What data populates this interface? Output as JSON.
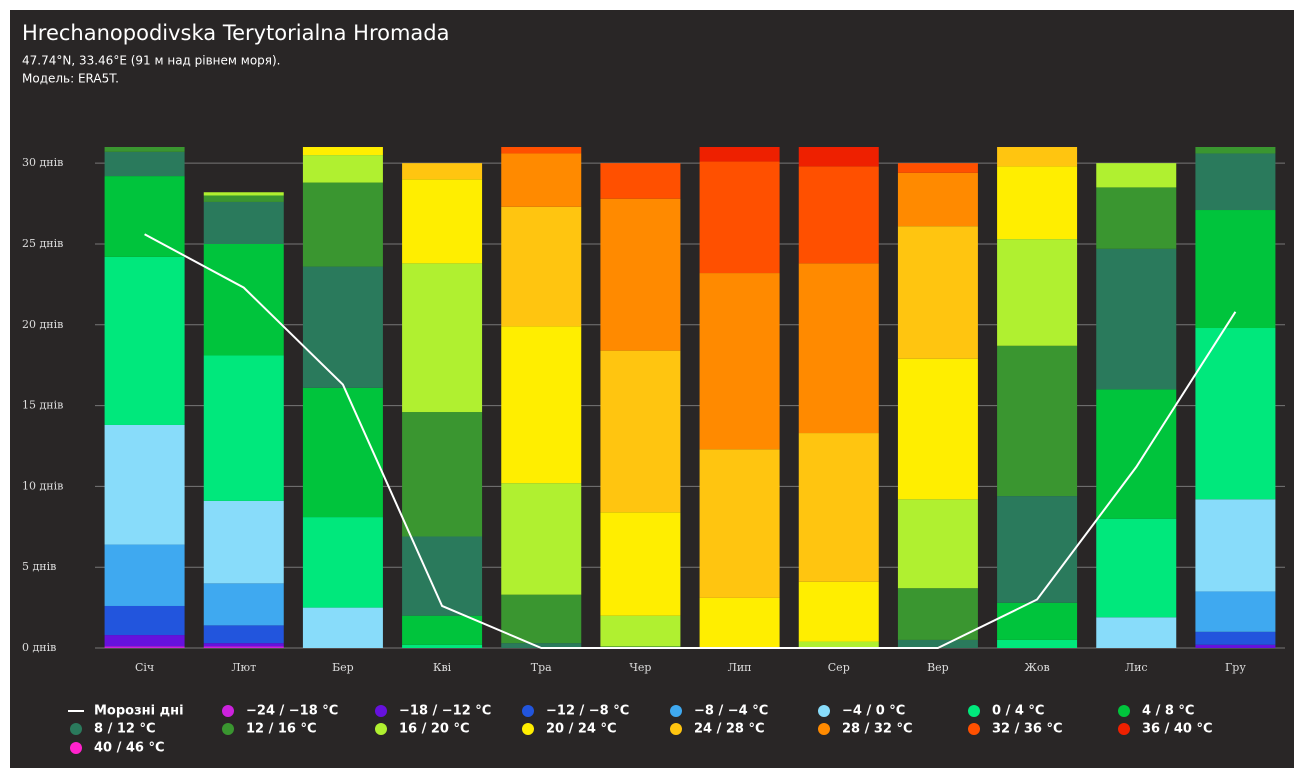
{
  "chart_data": {
    "type": "bar",
    "stacked": true,
    "title": "Hrechanopodivska Terytorialna Hromada",
    "subtitle": [
      "47.74°N, 33.46°E (91 м над рівнем моря).",
      "Модель: ERA5T."
    ],
    "categories": [
      "Січ",
      "Лют",
      "Бер",
      "Кві",
      "Тра",
      "Чер",
      "Лип",
      "Сер",
      "Вер",
      "Жов",
      "Лис",
      "Гру"
    ],
    "ylim": [
      0,
      31
    ],
    "yticks": [
      {
        "value": 0,
        "label": "0 днів"
      },
      {
        "value": 5,
        "label": "5 днів"
      },
      {
        "value": 10,
        "label": "10 днів"
      },
      {
        "value": 15,
        "label": "15 днів"
      },
      {
        "value": 20,
        "label": "20 днів"
      },
      {
        "value": 25,
        "label": "25 днів"
      },
      {
        "value": 30,
        "label": "30 днів"
      }
    ],
    "grid": true,
    "line": {
      "name": "Морозні дні",
      "color": "#ffffff",
      "values": [
        25.6,
        22.3,
        16.3,
        2.6,
        0,
        0,
        0,
        0,
        0,
        3.0,
        11.2,
        20.8
      ]
    },
    "series": [
      {
        "name": "−24 / −18 °C",
        "color": "#cc22dd",
        "values": [
          0.1,
          0.1,
          0,
          0,
          0,
          0,
          0,
          0,
          0,
          0,
          0,
          0
        ]
      },
      {
        "name": "−18 / −12 °C",
        "color": "#6611dd",
        "values": [
          0.7,
          0.2,
          0,
          0,
          0,
          0,
          0,
          0,
          0,
          0,
          0,
          0.2
        ]
      },
      {
        "name": "−12 / −8 °C",
        "color": "#2255dd",
        "values": [
          1.8,
          1.1,
          0,
          0,
          0,
          0,
          0,
          0,
          0,
          0,
          0,
          0.8
        ]
      },
      {
        "name": "−8 / −4 °C",
        "color": "#3fa9f0",
        "values": [
          3.8,
          2.6,
          0,
          0,
          0,
          0,
          0,
          0,
          0,
          0,
          0,
          2.5
        ]
      },
      {
        "name": "−4 / 0 °C",
        "color": "#88dcfa",
        "values": [
          7.4,
          5.1,
          2.5,
          0,
          0,
          0,
          0,
          0,
          0,
          0,
          1.9,
          5.7
        ]
      },
      {
        "name": "0 / 4 °C",
        "color": "#00e87c",
        "values": [
          10.4,
          9.0,
          5.6,
          0.2,
          0,
          0,
          0,
          0,
          0,
          0.5,
          6.1,
          10.6
        ]
      },
      {
        "name": "4 / 8 °C",
        "color": "#00c43c",
        "values": [
          5.0,
          6.9,
          8.0,
          1.8,
          0,
          0,
          0,
          0,
          0,
          2.3,
          8.0,
          7.3
        ]
      },
      {
        "name": "8 / 12 °C",
        "color": "#2a7a5c",
        "values": [
          1.5,
          2.6,
          7.5,
          4.9,
          0.3,
          0,
          0,
          0,
          0.5,
          6.6,
          8.7,
          3.5
        ]
      },
      {
        "name": "12 / 16 °C",
        "color": "#3a9630",
        "values": [
          0.3,
          0.4,
          5.2,
          7.7,
          3.0,
          0.1,
          0,
          0,
          3.2,
          9.3,
          3.8,
          0.4
        ]
      },
      {
        "name": "16 / 20 °C",
        "color": "#b0f030",
        "values": [
          0,
          0.2,
          1.7,
          9.2,
          6.9,
          1.9,
          0,
          0.4,
          5.5,
          6.6,
          1.5,
          0
        ]
      },
      {
        "name": "20 / 24 °C",
        "color": "#ffee00",
        "values": [
          0,
          0,
          0.5,
          5.2,
          9.7,
          6.4,
          3.1,
          3.7,
          8.7,
          4.5,
          0,
          0
        ]
      },
      {
        "name": "24 / 28 °C",
        "color": "#ffc510",
        "values": [
          0,
          0,
          0,
          1.0,
          7.4,
          10.0,
          9.2,
          9.2,
          8.2,
          1.2,
          0,
          0
        ]
      },
      {
        "name": "28 / 32 °C",
        "color": "#ff8a00",
        "values": [
          0,
          0,
          0,
          0,
          3.3,
          9.4,
          10.9,
          10.5,
          3.3,
          0,
          0,
          0
        ]
      },
      {
        "name": "32 / 36 °C",
        "color": "#ff5000",
        "values": [
          0,
          0,
          0,
          0,
          0.4,
          2.2,
          6.9,
          6.0,
          0.6,
          0,
          0,
          0
        ]
      },
      {
        "name": "36 / 40 °C",
        "color": "#ee2000",
        "values": [
          0,
          0,
          0,
          0,
          0,
          0,
          0.9,
          1.2,
          0,
          0,
          0,
          0
        ]
      },
      {
        "name": "40 / 46 °C",
        "color": "#ff22cc",
        "values": [
          0,
          0,
          0,
          0,
          0,
          0,
          0,
          0,
          0,
          0,
          0,
          0
        ]
      }
    ]
  }
}
